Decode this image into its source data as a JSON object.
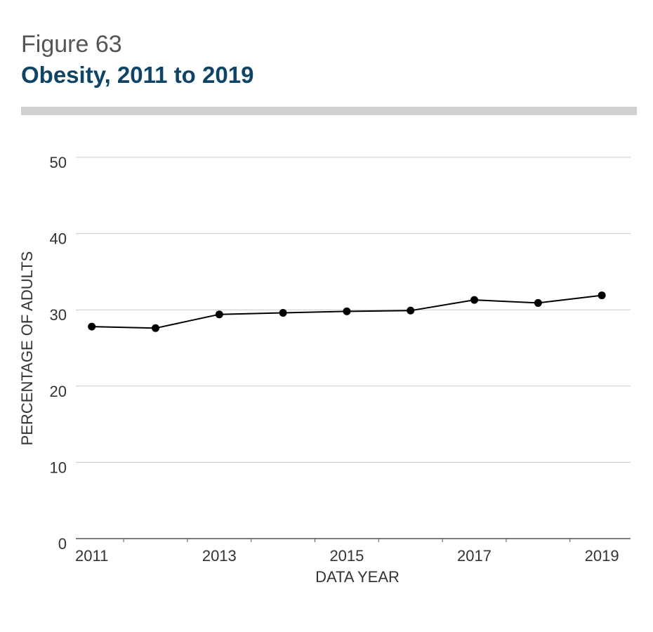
{
  "figure_label": "Figure 63",
  "title": "Obesity, 2011 to 2019",
  "chart_data": {
    "type": "line",
    "x": [
      2011,
      2012,
      2013,
      2014,
      2015,
      2016,
      2017,
      2018,
      2019
    ],
    "values": [
      27.8,
      27.6,
      29.4,
      29.6,
      29.8,
      29.9,
      31.3,
      30.9,
      31.9
    ],
    "xlabel": "DATA YEAR",
    "ylabel": "PERCENTAGE OF ADULTS",
    "ylim": [
      0,
      50
    ],
    "yticks": [
      "0",
      "10",
      "20",
      "30",
      "40",
      "50"
    ],
    "xticks": [
      "2011",
      "2013",
      "2015",
      "2017",
      "2019"
    ],
    "grid": true,
    "line_color": "#000000",
    "grid_color": "#c8c8c8"
  }
}
